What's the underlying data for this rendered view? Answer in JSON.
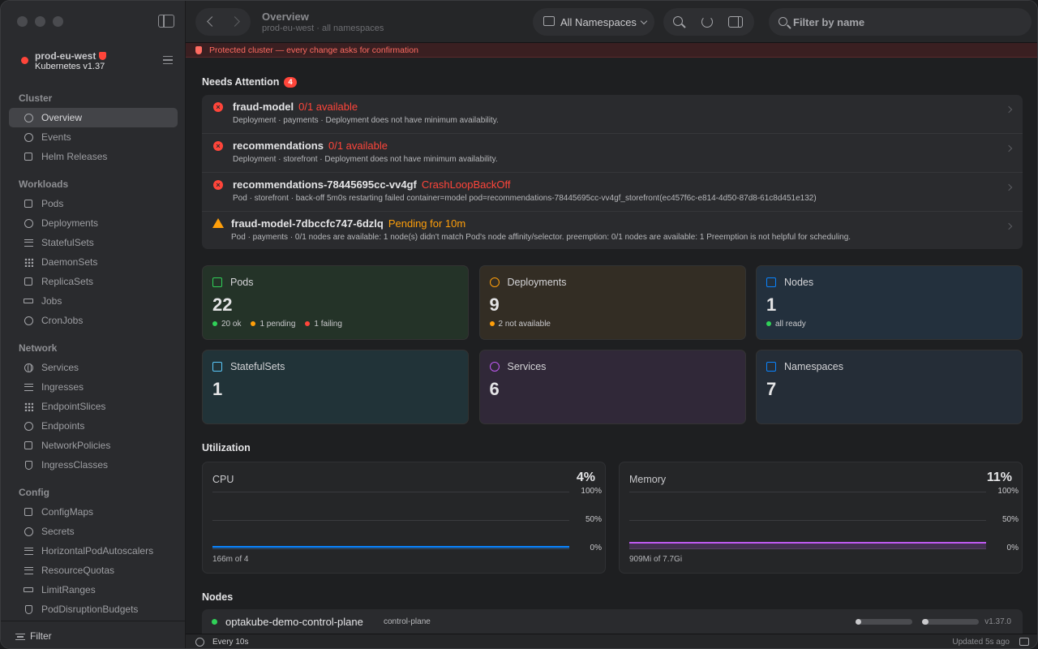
{
  "sidebar": {
    "cluster": {
      "name": "prod-eu-west",
      "version": "Kubernetes v1.37",
      "status_color": "#ff453a"
    },
    "sections": [
      {
        "title": "Cluster",
        "items": [
          {
            "label": "Overview",
            "icon": "clock-icon",
            "active": true
          },
          {
            "label": "Events",
            "icon": "bell-icon"
          },
          {
            "label": "Helm Releases",
            "icon": "cube-icon"
          }
        ]
      },
      {
        "title": "Workloads",
        "items": [
          {
            "label": "Pods",
            "icon": "cube-icon"
          },
          {
            "label": "Deployments",
            "icon": "refresh-icon"
          },
          {
            "label": "StatefulSets",
            "icon": "stack-icon"
          },
          {
            "label": "DaemonSets",
            "icon": "grid-dots-icon"
          },
          {
            "label": "ReplicaSets",
            "icon": "copy-icon"
          },
          {
            "label": "Jobs",
            "icon": "bolt-icon"
          },
          {
            "label": "CronJobs",
            "icon": "clock-icon"
          }
        ]
      },
      {
        "title": "Network",
        "items": [
          {
            "label": "Services",
            "icon": "globe-icon"
          },
          {
            "label": "Ingresses",
            "icon": "arrow-in-icon"
          },
          {
            "label": "EndpointSlices",
            "icon": "nodes-icon"
          },
          {
            "label": "Endpoints",
            "icon": "pin-icon"
          },
          {
            "label": "NetworkPolicies",
            "icon": "lock-icon"
          },
          {
            "label": "IngressClasses",
            "icon": "shield-icon"
          }
        ]
      },
      {
        "title": "Config",
        "items": [
          {
            "label": "ConfigMaps",
            "icon": "document-icon"
          },
          {
            "label": "Secrets",
            "icon": "key-icon"
          },
          {
            "label": "HorizontalPodAutoscalers",
            "icon": "arrows-horizontal-icon"
          },
          {
            "label": "ResourceQuotas",
            "icon": "sliders-icon"
          },
          {
            "label": "LimitRanges",
            "icon": "bar-icon"
          },
          {
            "label": "PodDisruptionBudgets",
            "icon": "shield-icon"
          }
        ]
      }
    ],
    "filter_label": "Filter"
  },
  "toolbar": {
    "title": "Overview",
    "subtitle": "prod-eu-west · all namespaces",
    "namespace_selector": "All Namespaces",
    "search_placeholder": "Filter by name"
  },
  "banner": {
    "text": "Protected cluster — every change asks for confirmation"
  },
  "needs_attention": {
    "title": "Needs Attention",
    "count": "4",
    "items": [
      {
        "severity": "error",
        "name": "fraud-model",
        "status": "0/1 available",
        "description": "Deployment · payments · Deployment does not have minimum availability."
      },
      {
        "severity": "error",
        "name": "recommendations",
        "status": "0/1 available",
        "description": "Deployment · storefront · Deployment does not have minimum availability."
      },
      {
        "severity": "error",
        "name": "recommendations-78445695cc-vv4gf",
        "status": "CrashLoopBackOff",
        "description": "Pod · storefront · back-off 5m0s restarting failed container=model pod=recommendations-78445695cc-vv4gf_storefront(ec457f6c-e814-4d50-87d8-61c8d451e132)"
      },
      {
        "severity": "warning",
        "name": "fraud-model-7dbccfc747-6dzlq",
        "status": "Pending for 10m",
        "description": "Pod · payments · 0/1 nodes are available: 1 node(s) didn't match Pod's node affinity/selector. preemption: 0/1 nodes are available: 1 Preemption is not helpful for scheduling."
      }
    ]
  },
  "stats": [
    {
      "label": "Pods",
      "value": "22",
      "icon": "cube-icon",
      "color": "#30d158",
      "bg": "#243328",
      "details": [
        {
          "text": "20 ok",
          "color": "#30d158"
        },
        {
          "text": "1 pending",
          "color": "#ff9f0a"
        },
        {
          "text": "1 failing",
          "color": "#ff453a"
        }
      ]
    },
    {
      "label": "Deployments",
      "value": "9",
      "icon": "refresh-icon",
      "color": "#ff9f0a",
      "bg": "#332d24",
      "details": [
        {
          "text": "2 not available",
          "color": "#ff9f0a"
        }
      ]
    },
    {
      "label": "Nodes",
      "value": "1",
      "icon": "monitor-icon",
      "color": "#0a84ff",
      "bg": "#23303d",
      "details": [
        {
          "text": "all ready",
          "color": "#30d158"
        }
      ]
    },
    {
      "label": "StatefulSets",
      "value": "1",
      "icon": "stack-icon",
      "color": "#5ac8fa",
      "bg": "#213338",
      "details": []
    },
    {
      "label": "Services",
      "value": "6",
      "icon": "globe-icon",
      "color": "#bf5af2",
      "bg": "#302838",
      "details": []
    },
    {
      "label": "Namespaces",
      "value": "7",
      "icon": "folder-icon",
      "color": "#0a84ff",
      "bg": "#252d37",
      "details": []
    }
  ],
  "utilization": {
    "title": "Utilization",
    "ticks": [
      "100%",
      "50%",
      "0%"
    ],
    "cards": [
      {
        "label": "CPU",
        "percent_text": "4%",
        "percent": 4,
        "usage": "166m of 4",
        "color": "#0a84ff"
      },
      {
        "label": "Memory",
        "percent_text": "11%",
        "percent": 11,
        "usage": "909Mi of 7.7Gi",
        "color": "#bf5af2"
      }
    ]
  },
  "nodes": {
    "title": "Nodes",
    "rows": [
      {
        "name": "optakube-demo-control-plane",
        "role": "control-plane",
        "cpu_fraction": 0.04,
        "mem_fraction": 0.11,
        "version": "v1.37.0"
      }
    ]
  },
  "statusbar": {
    "refresh": "Every 10s",
    "updated": "Updated 5s ago"
  }
}
